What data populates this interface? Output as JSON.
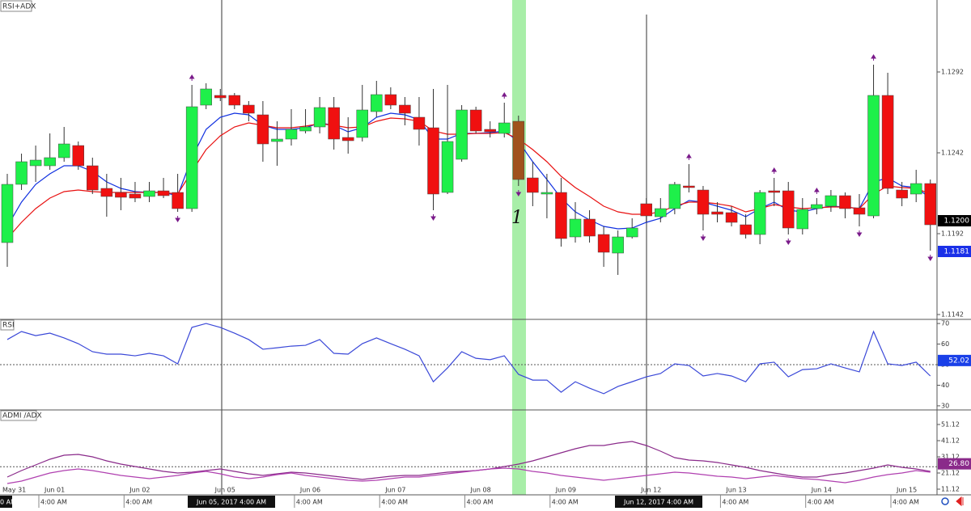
{
  "chart_data": [
    {
      "type": "candlestick",
      "title": "RSI+ADX",
      "annotation": "1",
      "open": [
        1.11865,
        1.12225,
        1.1234,
        1.1234,
        1.1239,
        1.12465,
        1.1234,
        1.122,
        1.12175,
        1.12165,
        1.1215,
        1.12185,
        1.12175,
        1.12075,
        1.12715,
        1.12775,
        1.12775,
        1.12715,
        1.12655,
        1.1249,
        1.12505,
        1.12555,
        1.1258,
        1.127,
        1.12515,
        1.12515,
        1.12675,
        1.1278,
        1.12715,
        1.1264,
        1.12575,
        1.12175,
        1.1238,
        1.12685,
        1.12565,
        1.1254,
        1.12615,
        1.12265,
        1.12165,
        1.12175,
        1.119,
        1.1201,
        1.11915,
        1.118,
        1.119,
        1.12105,
        1.12025,
        1.12075,
        1.12215,
        1.1219,
        1.12055,
        1.1205,
        1.11975,
        1.11915,
        1.12185,
        1.12185,
        1.1195,
        1.12075,
        1.1209,
        1.12155,
        1.1208,
        1.1203,
        1.12775,
        1.1219,
        1.12165,
        1.1223
      ],
      "high": [
        1.1229,
        1.12415,
        1.12465,
        1.1254,
        1.1258,
        1.1249,
        1.1239,
        1.1229,
        1.12265,
        1.1224,
        1.1224,
        1.12265,
        1.1229,
        1.1284,
        1.1285,
        1.12815,
        1.1279,
        1.1274,
        1.1274,
        1.12615,
        1.1269,
        1.1269,
        1.12765,
        1.12765,
        1.1264,
        1.1284,
        1.12865,
        1.12825,
        1.12765,
        1.12765,
        1.12815,
        1.1284,
        1.12715,
        1.12705,
        1.12615,
        1.1273,
        1.1265,
        1.12365,
        1.1229,
        1.12265,
        1.12115,
        1.12065,
        1.11965,
        1.1194,
        1.12015,
        1.1214,
        1.1214,
        1.1224,
        1.1235,
        1.12215,
        1.12115,
        1.1209,
        1.1204,
        1.1219,
        1.12265,
        1.1224,
        1.1214,
        1.1214,
        1.1219,
        1.12175,
        1.12165,
        1.12965,
        1.12915,
        1.1224,
        1.12315,
        1.12255
      ],
      "low": [
        1.11715,
        1.1219,
        1.1224,
        1.12315,
        1.12365,
        1.12315,
        1.12165,
        1.12025,
        1.12065,
        1.12115,
        1.12115,
        1.1214,
        1.12055,
        1.12055,
        1.1269,
        1.1274,
        1.1269,
        1.12615,
        1.12365,
        1.1234,
        1.12465,
        1.1254,
        1.1254,
        1.1244,
        1.12415,
        1.1249,
        1.1264,
        1.1269,
        1.1259,
        1.12465,
        1.12065,
        1.12165,
        1.12365,
        1.1254,
        1.12515,
        1.12515,
        1.12215,
        1.1209,
        1.12015,
        1.1184,
        1.11865,
        1.11865,
        1.11715,
        1.11665,
        1.1189,
        1.1199,
        1.1199,
        1.1204,
        1.12175,
        1.1194,
        1.1199,
        1.11965,
        1.1189,
        1.11855,
        1.1209,
        1.11915,
        1.11915,
        1.1204,
        1.12055,
        1.12015,
        1.11965,
        1.12015,
        1.12165,
        1.1209,
        1.12115,
        1.11815
      ],
      "close": [
        1.12225,
        1.12365,
        1.12375,
        1.1239,
        1.12475,
        1.1234,
        1.1219,
        1.1215,
        1.12145,
        1.1214,
        1.12185,
        1.12155,
        1.12075,
        1.12705,
        1.12815,
        1.1276,
        1.12715,
        1.12665,
        1.12475,
        1.12505,
        1.12565,
        1.1258,
        1.127,
        1.12505,
        1.12495,
        1.12685,
        1.1278,
        1.12715,
        1.12665,
        1.12565,
        1.12165,
        1.1249,
        1.12685,
        1.12555,
        1.1255,
        1.12605,
        1.12255,
        1.12175,
        1.12175,
        1.1189,
        1.1201,
        1.11905,
        1.11805,
        1.119,
        1.11955,
        1.1203,
        1.12075,
        1.12225,
        1.12205,
        1.1204,
        1.1204,
        1.1199,
        1.11915,
        1.12175,
        1.12175,
        1.11955,
        1.1207,
        1.121,
        1.12155,
        1.12075,
        1.1204,
        1.12775,
        1.122,
        1.1214,
        1.1223,
        1.11975
      ],
      "colors": [
        "#1ef04a",
        "#1ef04a",
        "#1ef04a",
        "#1ef04a",
        "#1ef04a",
        "#f01010",
        "#f01010",
        "#f01010",
        "#f01010",
        "#f01010",
        "#1ef04a",
        "#f01010",
        "#f01010",
        "#1ef04a",
        "#1ef04a",
        "#f01010",
        "#f01010",
        "#f01010",
        "#f01010",
        "#1ef04a",
        "#1ef04a",
        "#1ef04a",
        "#1ef04a",
        "#f01010",
        "#f01010",
        "#1ef04a",
        "#1ef04a",
        "#f01010",
        "#f01010",
        "#f01010",
        "#f01010",
        "#1ef04a",
        "#1ef04a",
        "#f01010",
        "#f01010",
        "#1ef04a",
        "#a0521d",
        "#f01010",
        "#1ef04a",
        "#f01010",
        "#1ef04a",
        "#f01010",
        "#f01010",
        "#1ef04a",
        "#1ef04a",
        "#f01010",
        "#1ef04a",
        "#1ef04a",
        "#f01010",
        "#f01010",
        "#f01010",
        "#f01010",
        "#f01010",
        "#1ef04a",
        "#f01010",
        "#f01010",
        "#1ef04a",
        "#1ef04a",
        "#1ef04a",
        "#f01010",
        "#f01010",
        "#1ef04a",
        "#f01010",
        "#f01010",
        "#1ef04a",
        "#f01010"
      ],
      "markers": [
        null,
        null,
        null,
        null,
        null,
        null,
        null,
        null,
        null,
        null,
        null,
        null,
        "down",
        "up",
        null,
        null,
        null,
        null,
        null,
        null,
        null,
        null,
        null,
        null,
        null,
        null,
        null,
        null,
        null,
        null,
        "down",
        null,
        null,
        null,
        null,
        "up",
        "down",
        null,
        null,
        null,
        null,
        null,
        null,
        null,
        null,
        null,
        null,
        null,
        "up",
        "down",
        null,
        null,
        null,
        null,
        "up",
        "down",
        null,
        "up",
        null,
        null,
        "down",
        "up",
        null,
        null,
        null,
        "down"
      ],
      "marker_color": "#7a1a8a",
      "series": [
        {
          "color": "#1030e0",
          "values": [
            1.11965,
            1.12115,
            1.12225,
            1.1229,
            1.1234,
            1.1234,
            1.12305,
            1.1224,
            1.122,
            1.1218,
            1.12175,
            1.12175,
            1.12155,
            1.1239,
            1.12565,
            1.1264,
            1.12665,
            1.12655,
            1.1259,
            1.12565,
            1.12565,
            1.12575,
            1.12605,
            1.1259,
            1.1255,
            1.12575,
            1.1264,
            1.12665,
            1.12655,
            1.12625,
            1.12505,
            1.12505,
            1.1254,
            1.1254,
            1.12545,
            1.12555,
            1.1249,
            1.12365,
            1.12255,
            1.1214,
            1.12055,
            1.12005,
            1.11965,
            1.1195,
            1.11955,
            1.1199,
            1.12015,
            1.12075,
            1.12125,
            1.12115,
            1.1209,
            1.12065,
            1.12025,
            1.12075,
            1.12115,
            1.12065,
            1.12055,
            1.12075,
            1.1209,
            1.12085,
            1.12075,
            1.1224,
            1.12265,
            1.12215,
            1.12205,
            1.1214
          ]
        },
        {
          "color": "#e81010",
          "values": [
            1.1189,
            1.1199,
            1.12075,
            1.1214,
            1.1218,
            1.1219,
            1.1218,
            1.12175,
            1.12175,
            1.12175,
            1.12175,
            1.12175,
            1.12165,
            1.12305,
            1.1244,
            1.12525,
            1.1258,
            1.12605,
            1.1259,
            1.12575,
            1.12575,
            1.12585,
            1.126,
            1.1259,
            1.12575,
            1.1258,
            1.12615,
            1.12635,
            1.1263,
            1.12615,
            1.12555,
            1.12535,
            1.12535,
            1.1254,
            1.1254,
            1.12545,
            1.12505,
            1.1244,
            1.12365,
            1.12275,
            1.12205,
            1.1215,
            1.1209,
            1.12055,
            1.1204,
            1.1204,
            1.12055,
            1.1209,
            1.12115,
            1.12115,
            1.12105,
            1.1209,
            1.12055,
            1.12075,
            1.121,
            1.12085,
            1.12075,
            1.1208,
            1.12085,
            1.12085,
            1.12075,
            1.12165,
            1.12215,
            1.12205,
            1.122,
            1.12165
          ]
        }
      ],
      "ylim": [
        1.1139,
        1.13365
      ],
      "yticks": [
        1.1292,
        1.1242,
        1.1192,
        1.1142
      ],
      "price_labels": [
        {
          "value": 1.12,
          "label": "1.1200",
          "color": "#000000"
        },
        {
          "value": 1.1181,
          "label": "1.1181",
          "color": "#1a30e8"
        }
      ]
    },
    {
      "type": "line",
      "title": "RSI",
      "series": [
        {
          "color": "#3a48d8",
          "values": [
            62.2,
            66.1,
            64.1,
            65.3,
            63.0,
            60.2,
            56.3,
            55.1,
            55.1,
            54.3,
            55.5,
            54.3,
            50.4,
            68.1,
            70.0,
            68.1,
            65.3,
            62.2,
            57.5,
            58.2,
            59.0,
            59.4,
            62.2,
            55.5,
            55.1,
            60.2,
            63.0,
            60.2,
            57.5,
            54.3,
            41.7,
            48.4,
            56.3,
            53.1,
            52.4,
            54.3,
            45.3,
            42.5,
            42.5,
            36.6,
            41.7,
            38.6,
            35.9,
            39.4,
            41.7,
            44.1,
            45.7,
            50.4,
            49.6,
            44.5,
            45.7,
            44.5,
            41.7,
            50.4,
            51.2,
            44.1,
            47.6,
            48.0,
            50.4,
            48.4,
            46.5,
            66.1,
            50.4,
            49.6,
            51.2,
            44.5
          ]
        }
      ],
      "ylim": [
        28,
        72
      ],
      "yticks": [
        70,
        60,
        50,
        40,
        30
      ],
      "levels": [
        50
      ],
      "value_label": {
        "value": 52.02,
        "label": "52.02",
        "color": "#1a40e8"
      }
    },
    {
      "type": "line",
      "title": "ADMI /ADX",
      "series": [
        {
          "color": "#8a2a8a",
          "values": [
            18.62,
            22.62,
            26.12,
            29.62,
            32.12,
            32.62,
            31.12,
            28.62,
            26.62,
            25.12,
            23.62,
            22.12,
            21.12,
            21.62,
            22.62,
            23.62,
            22.12,
            20.62,
            19.62,
            20.62,
            21.62,
            21.12,
            20.12,
            19.12,
            18.12,
            17.12,
            18.12,
            19.12,
            19.62,
            19.62,
            20.62,
            21.62,
            22.12,
            22.62,
            23.62,
            25.12,
            26.62,
            28.62,
            31.12,
            33.62,
            36.12,
            38.12,
            38.12,
            39.62,
            40.62,
            38.12,
            34.62,
            30.62,
            29.12,
            28.62,
            27.62,
            26.12,
            24.62,
            22.62,
            21.12,
            19.62,
            18.62,
            18.62,
            20.12,
            21.12,
            22.62,
            24.12,
            26.12,
            24.62,
            23.62,
            22.12
          ]
        },
        {
          "color": "#b040b0",
          "values": [
            14.62,
            16.12,
            18.62,
            21.12,
            22.62,
            23.62,
            22.62,
            21.12,
            19.62,
            18.62,
            17.62,
            18.62,
            19.62,
            21.12,
            22.12,
            20.62,
            18.62,
            17.62,
            18.62,
            20.12,
            21.12,
            19.62,
            18.62,
            17.62,
            16.62,
            16.12,
            16.62,
            17.62,
            18.62,
            18.62,
            19.62,
            20.62,
            21.62,
            22.62,
            23.62,
            24.12,
            23.62,
            22.12,
            21.12,
            19.62,
            18.62,
            17.62,
            16.62,
            17.62,
            18.62,
            19.62,
            20.62,
            21.62,
            21.12,
            20.12,
            19.12,
            18.62,
            17.62,
            18.62,
            19.62,
            18.62,
            17.62,
            17.12,
            16.12,
            15.12,
            16.62,
            18.62,
            20.12,
            21.12,
            22.62,
            21.62
          ]
        }
      ],
      "ylim": [
        7.62,
        60.12
      ],
      "yticks": [
        51.12,
        41.12,
        31.12,
        21.12,
        11.12
      ],
      "levels": [
        25
      ],
      "value_label": {
        "value": 26.8,
        "label": "26.80",
        "color": "#8a2a8a"
      }
    }
  ],
  "x_axis": {
    "dates": [
      "May 31",
      "Jun 01",
      "Jun 02",
      "Jun 05",
      "Jun 06",
      "Jun 07",
      "Jun 08",
      "Jun 09",
      "Jun 12",
      "Jun 13",
      "Jun 14",
      "Jun 15"
    ],
    "times": [
      "4:00 AM",
      "4:00 AM",
      "4:00 AM",
      "4:00 AM",
      "4:00 AM",
      "4:00 AM",
      "4:00 AM",
      "4:00 AM",
      "4:00 AM"
    ],
    "cursor_label": "0 AM",
    "crosshair_labels": [
      "Jun 05, 2017 4:00 AM",
      "Jun 12, 2017 4:00 AM"
    ]
  }
}
